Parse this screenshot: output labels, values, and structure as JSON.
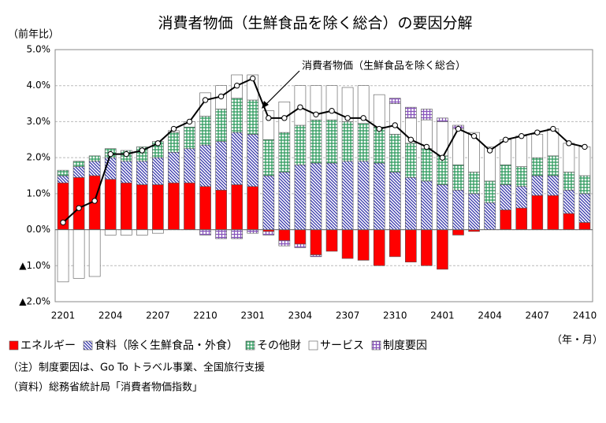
{
  "chart_data": {
    "type": "bar",
    "title": "消費者物価（生鮮食品を除く総合）の要因分解",
    "y_label": "（前年比）",
    "x_label": "（年・月）",
    "categories": [
      "2201",
      null,
      null,
      "2204",
      null,
      null,
      "2207",
      null,
      null,
      "2210",
      null,
      null,
      "2301",
      null,
      null,
      "2304",
      null,
      null,
      "2307",
      null,
      null,
      "2310",
      null,
      null,
      "2401",
      null,
      null,
      "2404",
      null,
      null,
      "2407",
      null,
      null,
      "2410"
    ],
    "series": [
      {
        "name": "エネルギー",
        "color": "#ff0000",
        "fill": "solid",
        "values": [
          1.3,
          1.45,
          1.5,
          1.4,
          1.3,
          1.25,
          1.25,
          1.3,
          1.3,
          1.2,
          1.1,
          1.25,
          1.2,
          -0.05,
          -0.3,
          -0.4,
          -0.7,
          -0.6,
          -0.8,
          -0.85,
          -1.0,
          -0.75,
          -0.9,
          -1.0,
          -1.1,
          -0.15,
          -0.05,
          0.0,
          0.55,
          0.6,
          0.95,
          0.95,
          0.45,
          0.2
        ]
      },
      {
        "name": "食料（除く生鮮食品・外食）",
        "color": "#3333aa",
        "fill": "hatch",
        "values": [
          0.2,
          0.3,
          0.4,
          0.6,
          0.6,
          0.65,
          0.75,
          0.85,
          0.95,
          1.15,
          1.35,
          1.45,
          1.45,
          1.5,
          1.6,
          1.8,
          1.85,
          1.85,
          1.9,
          1.9,
          1.85,
          1.6,
          1.45,
          1.35,
          1.25,
          1.1,
          1.0,
          0.75,
          0.7,
          0.6,
          0.55,
          0.55,
          0.65,
          0.8
        ]
      },
      {
        "name": "その他財",
        "color": "#2e9a5e",
        "fill": "vlines",
        "values": [
          0.15,
          0.15,
          0.15,
          0.25,
          0.3,
          0.4,
          0.45,
          0.55,
          0.6,
          0.8,
          0.9,
          0.95,
          0.95,
          1.0,
          1.1,
          1.1,
          1.2,
          1.2,
          1.1,
          1.05,
          1.0,
          1.05,
          0.95,
          0.9,
          0.8,
          0.7,
          0.6,
          0.6,
          0.55,
          0.55,
          0.5,
          0.55,
          0.5,
          0.5
        ]
      },
      {
        "name": "サービス",
        "color": "#ffffff",
        "fill": "solid",
        "values": [
          -1.45,
          -1.35,
          -1.3,
          -0.15,
          -0.15,
          -0.15,
          -0.1,
          0.05,
          0.15,
          0.65,
          0.65,
          0.65,
          0.7,
          0.8,
          0.85,
          1.1,
          0.95,
          0.95,
          0.95,
          1.05,
          0.9,
          0.85,
          0.7,
          0.8,
          0.95,
          1.0,
          1.1,
          0.95,
          0.7,
          0.85,
          0.65,
          0.75,
          0.8,
          0.8
        ]
      },
      {
        "name": "制度要因",
        "color": "#8855bb",
        "fill": "grid",
        "values": [
          0,
          0,
          0,
          0,
          0,
          0,
          0,
          0,
          0,
          -0.15,
          -0.25,
          -0.25,
          -0.1,
          -0.1,
          -0.15,
          -0.1,
          -0.05,
          0,
          0,
          0,
          0,
          0.15,
          0.3,
          0.3,
          0.1,
          0.1,
          0,
          0,
          0,
          0,
          0,
          0,
          0,
          0
        ]
      },
      {
        "name": "消費者物価（生鮮食品を除く総合）",
        "color": "#000000",
        "type": "line",
        "values": [
          0.2,
          0.6,
          0.8,
          2.1,
          2.1,
          2.2,
          2.4,
          2.8,
          3.0,
          3.6,
          3.7,
          4.0,
          4.2,
          3.1,
          3.1,
          3.4,
          3.2,
          3.3,
          3.1,
          3.1,
          2.8,
          2.9,
          2.5,
          2.3,
          2.0,
          2.8,
          2.6,
          2.2,
          2.5,
          2.6,
          2.7,
          2.8,
          2.4,
          2.3
        ]
      }
    ],
    "ylim": [
      -2,
      5
    ],
    "yticks": [
      {
        "value": -2,
        "label": "▲2.0%"
      },
      {
        "value": -1,
        "label": "▲1.0%"
      },
      {
        "value": 0,
        "label": "0.0%"
      },
      {
        "value": 1,
        "label": "1.0%"
      },
      {
        "value": 2,
        "label": "2.0%"
      },
      {
        "value": 3,
        "label": "3.0%"
      },
      {
        "value": 4,
        "label": "4.0%"
      },
      {
        "value": 5,
        "label": "5.0%"
      }
    ],
    "grid": true,
    "notes": [
      "（注）制度要因は、Go To トラベル事業、全国旅行支援",
      "（資料）総務省統計局「消費者物価指数」"
    ]
  }
}
